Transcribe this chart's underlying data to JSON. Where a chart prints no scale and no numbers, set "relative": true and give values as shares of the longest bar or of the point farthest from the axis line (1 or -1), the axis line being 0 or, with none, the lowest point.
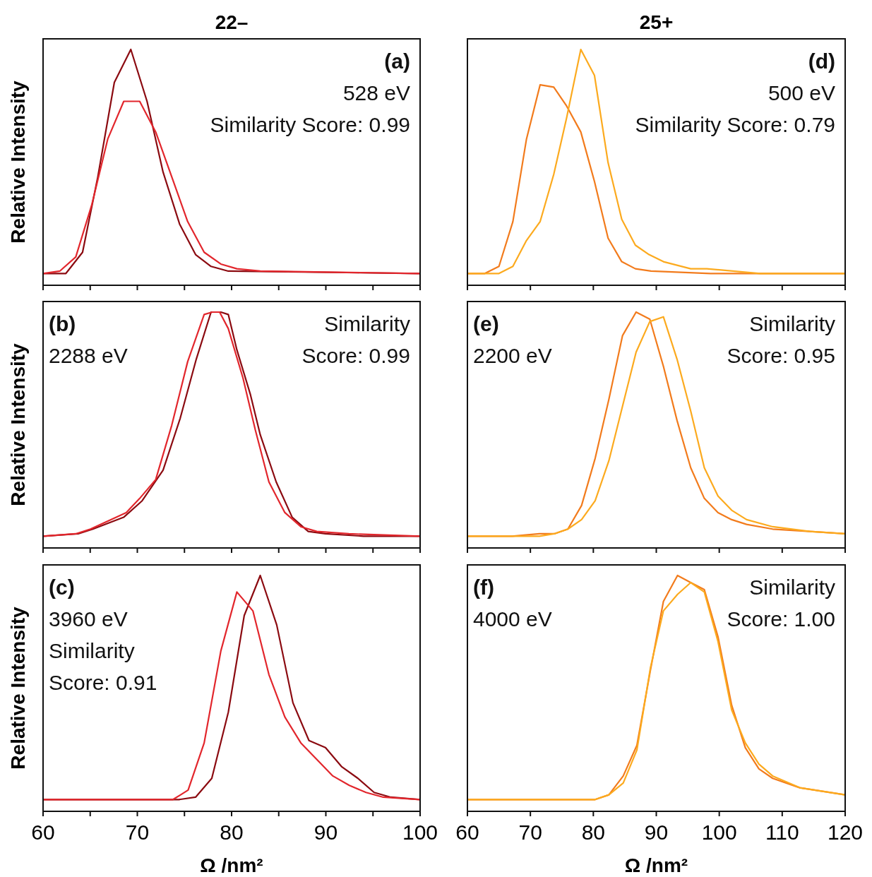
{
  "chart_data": [
    {
      "type": "line",
      "title": "22–",
      "ylabel": "Relative Intensity",
      "relative": true,
      "tick_labels": false,
      "annotations": [
        "(a)",
        "528 eV",
        "Similarity Score: 0.99"
      ],
      "xlim": [
        60,
        100
      ],
      "xticks": [
        60,
        {
          "value": 65,
          "label": null
        },
        70,
        {
          "value": 75,
          "label": null
        },
        80,
        {
          "value": 85,
          "label": null
        },
        90,
        {
          "value": 95,
          "label": null
        },
        100
      ],
      "series": [
        {
          "color": "#8b0a10",
          "x": [
            60,
            62.42,
            64.19,
            65.81,
            67.56,
            69.31,
            71.03,
            72.73,
            74.48,
            76.18,
            77.82,
            79.65,
            100
          ],
          "values": [
            0.05,
            0.05,
            0.14,
            0.46,
            0.86,
            1.0,
            0.78,
            0.48,
            0.26,
            0.13,
            0.08,
            0.06,
            0.05
          ]
        },
        {
          "color": "#e2262c",
          "x": [
            60,
            61.77,
            63.47,
            65.16,
            66.86,
            68.56,
            70.25,
            71.95,
            73.65,
            75.34,
            77.09,
            78.86,
            80.56,
            83.04,
            100
          ],
          "values": [
            0.05,
            0.06,
            0.12,
            0.34,
            0.62,
            0.78,
            0.78,
            0.65,
            0.46,
            0.27,
            0.14,
            0.09,
            0.07,
            0.06,
            0.05
          ]
        }
      ]
    },
    {
      "type": "line",
      "ylabel": "Relative Intensity",
      "relative": true,
      "tick_labels": false,
      "annotations": [
        "(b)",
        "2288 eV",
        "Similarity Score: 0.99"
      ],
      "xlim": [
        60,
        100
      ],
      "xticks": [
        60,
        {
          "value": 65,
          "label": null
        },
        70,
        {
          "value": 75,
          "label": null
        },
        80,
        {
          "value": 85,
          "label": null
        },
        90,
        {
          "value": 95,
          "label": null
        },
        100
      ],
      "series": [
        {
          "color": "#8b0a10",
          "x": [
            60,
            63.72,
            65.29,
            68.55,
            70.51,
            72.73,
            74.55,
            76.25,
            77.82,
            78.86,
            79.65,
            80.56,
            82.0,
            83.04,
            84.73,
            86.43,
            88.13,
            89.96,
            94.0,
            100
          ],
          "values": [
            0.05,
            0.06,
            0.08,
            0.13,
            0.2,
            0.33,
            0.55,
            0.8,
            1.0,
            1.0,
            0.99,
            0.84,
            0.65,
            0.48,
            0.28,
            0.13,
            0.07,
            0.06,
            0.05,
            0.05
          ]
        },
        {
          "color": "#e2262c",
          "x": [
            60,
            63.47,
            65.03,
            68.82,
            70.25,
            71.95,
            73.65,
            75.34,
            77.09,
            77.95,
            78.73,
            79.65,
            81.21,
            82.52,
            83.96,
            85.65,
            87.35,
            89.04,
            92.43,
            100
          ],
          "values": [
            0.05,
            0.06,
            0.08,
            0.15,
            0.21,
            0.29,
            0.52,
            0.79,
            0.99,
            1.0,
            1.0,
            0.93,
            0.72,
            0.5,
            0.28,
            0.15,
            0.09,
            0.07,
            0.06,
            0.05
          ]
        }
      ]
    },
    {
      "type": "line",
      "ylabel": "Relative Intensity",
      "xlabel": "Ω /nm²",
      "relative": true,
      "tick_labels": "x",
      "annotations": [
        "(c)",
        "3960 eV",
        "Similarity Score: 0.91"
      ],
      "xlim": [
        60,
        100
      ],
      "xticks": [
        60,
        {
          "value": 65,
          "label": null
        },
        70,
        {
          "value": 75,
          "label": null
        },
        80,
        {
          "value": 85,
          "label": null
        },
        90,
        {
          "value": 95,
          "label": null
        },
        100
      ],
      "series": [
        {
          "color": "#8b0a10",
          "x": [
            60,
            73.78,
            74.43,
            76.18,
            77.9,
            79.65,
            81.34,
            83.04,
            84.79,
            86.51,
            88.21,
            89.96,
            91.66,
            93.4,
            95.12,
            96.88,
            100
          ],
          "values": [
            0.05,
            0.05,
            0.05,
            0.06,
            0.14,
            0.42,
            0.83,
            1.0,
            0.79,
            0.46,
            0.3,
            0.27,
            0.19,
            0.14,
            0.08,
            0.06,
            0.05
          ]
        },
        {
          "color": "#e2262c",
          "x": [
            60,
            72.07,
            73.78,
            75.39,
            77.09,
            78.86,
            80.56,
            82.26,
            83.96,
            85.65,
            87.35,
            89.04,
            90.74,
            92.49,
            94.26,
            96.09,
            100
          ],
          "values": [
            0.05,
            0.05,
            0.05,
            0.09,
            0.29,
            0.68,
            0.93,
            0.85,
            0.58,
            0.4,
            0.29,
            0.22,
            0.15,
            0.11,
            0.08,
            0.06,
            0.05
          ]
        }
      ]
    },
    {
      "type": "line",
      "title": "25+",
      "relative": true,
      "tick_labels": false,
      "annotations": [
        "(d)",
        "500 eV",
        "Similarity Score: 0.79"
      ],
      "xlim": [
        60,
        120
      ],
      "xticks": [
        60,
        70,
        80,
        90,
        100,
        110,
        120
      ],
      "series": [
        {
          "color": "#f27b1c",
          "x": [
            60,
            62.76,
            65.01,
            67.22,
            69.38,
            71.55,
            73.71,
            75.76,
            78.01,
            80.18,
            82.34,
            84.51,
            86.68,
            89.16,
            98.62,
            120
          ],
          "values": [
            0.05,
            0.05,
            0.08,
            0.27,
            0.62,
            0.85,
            0.84,
            0.76,
            0.65,
            0.44,
            0.2,
            0.1,
            0.07,
            0.06,
            0.05,
            0.05
          ]
        },
        {
          "color": "#fcaa1e",
          "x": [
            60,
            65.01,
            67.22,
            69.38,
            71.55,
            73.71,
            75.76,
            78.01,
            80.18,
            82.34,
            84.51,
            86.68,
            88.85,
            91.13,
            95.47,
            98.03,
            106.5,
            120
          ],
          "values": [
            0.05,
            0.05,
            0.08,
            0.19,
            0.27,
            0.47,
            0.71,
            1.0,
            0.89,
            0.52,
            0.28,
            0.17,
            0.13,
            0.1,
            0.07,
            0.07,
            0.05,
            0.05
          ]
        }
      ]
    },
    {
      "type": "line",
      "relative": true,
      "tick_labels": false,
      "annotations": [
        "(e)",
        "2200 eV",
        "Similarity Score: 0.95"
      ],
      "xlim": [
        60,
        120
      ],
      "xticks": [
        60,
        70,
        80,
        90,
        100,
        110,
        120
      ],
      "series": [
        {
          "color": "#f27b1c",
          "x": [
            60,
            67.1,
            71.43,
            73.79,
            75.96,
            78.13,
            80.29,
            82.47,
            84.63,
            86.79,
            88.97,
            91.13,
            93.3,
            95.47,
            97.63,
            99.8,
            101.97,
            104.34,
            108.48,
            114.38,
            120
          ],
          "values": [
            0.05,
            0.05,
            0.06,
            0.06,
            0.08,
            0.18,
            0.38,
            0.63,
            0.9,
            1.0,
            0.97,
            0.77,
            0.54,
            0.34,
            0.21,
            0.15,
            0.12,
            0.1,
            0.08,
            0.07,
            0.06
          ]
        },
        {
          "color": "#fcaa1e",
          "x": [
            60,
            67.1,
            71.43,
            73.79,
            75.96,
            78.13,
            80.29,
            82.47,
            84.63,
            86.79,
            88.97,
            91.13,
            93.3,
            95.47,
            97.63,
            99.8,
            101.97,
            104.34,
            108.48,
            114.38,
            120
          ],
          "values": [
            0.05,
            0.05,
            0.05,
            0.06,
            0.08,
            0.12,
            0.2,
            0.37,
            0.6,
            0.83,
            0.96,
            0.98,
            0.8,
            0.58,
            0.34,
            0.22,
            0.16,
            0.12,
            0.09,
            0.07,
            0.06
          ]
        }
      ]
    },
    {
      "type": "line",
      "xlabel": "Ω /nm²",
      "relative": true,
      "tick_labels": "x",
      "annotations": [
        "(f)",
        "4000 eV",
        "Similarity Score: 1.00"
      ],
      "xlim": [
        60,
        120
      ],
      "xticks": [
        60,
        70,
        80,
        90,
        100,
        110,
        120
      ],
      "series": [
        {
          "color": "#f27b1c",
          "x": [
            60,
            65.12,
            80.29,
            82.47,
            84.75,
            86.92,
            89.08,
            91.13,
            93.37,
            95.47,
            97.63,
            99.8,
            101.97,
            104.14,
            106.3,
            108.48,
            112.8,
            120
          ],
          "values": [
            0.05,
            0.05,
            0.05,
            0.07,
            0.15,
            0.28,
            0.6,
            0.89,
            1.0,
            0.97,
            0.94,
            0.74,
            0.45,
            0.27,
            0.18,
            0.14,
            0.1,
            0.07
          ]
        },
        {
          "color": "#fcaa1e",
          "x": [
            60,
            80.29,
            82.47,
            84.75,
            86.92,
            89.08,
            91.13,
            93.37,
            95.47,
            97.63,
            99.8,
            101.97,
            104.14,
            106.3,
            108.48,
            112.8,
            120
          ],
          "values": [
            0.05,
            0.05,
            0.07,
            0.12,
            0.26,
            0.61,
            0.85,
            0.92,
            0.97,
            0.93,
            0.72,
            0.43,
            0.29,
            0.2,
            0.15,
            0.1,
            0.07
          ]
        }
      ]
    }
  ]
}
